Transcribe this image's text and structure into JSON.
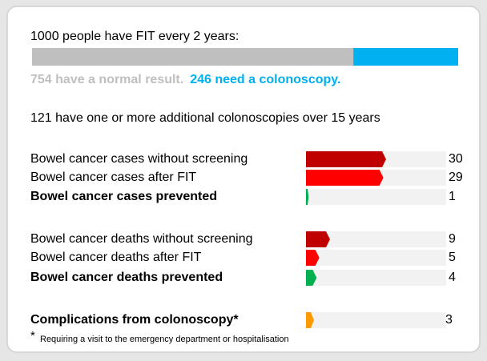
{
  "header": "1000 people have FIT every 2 years:",
  "fit_bar": {
    "total": 1000,
    "segments": [
      {
        "label": "754 have a normal result.",
        "value": 754,
        "color": "#bfbfbf"
      },
      {
        "label": "246 need a colonoscopy.",
        "value": 246,
        "color": "#00b0f0"
      }
    ]
  },
  "additional": "121 have one or more additional colonoscopies over 15 years",
  "rows": [
    {
      "label": "Bowel cancer cases without screening",
      "value": 30,
      "color": "#c00000",
      "text_color": "#000000",
      "bold": false
    },
    {
      "label": "Bowel cancer cases after FIT",
      "value": 29,
      "color": "#ff0000",
      "text_color": "#000000",
      "bold": false
    },
    {
      "label": "Bowel cancer cases prevented",
      "value": 1,
      "color": "#00b050",
      "text_color": "#00b050",
      "bold": true
    },
    {
      "label": "Bowel cancer deaths without screening",
      "value": 9,
      "color": "#c00000",
      "text_color": "#000000",
      "bold": false
    },
    {
      "label": "Bowel cancer deaths after FIT",
      "value": 5,
      "color": "#ff0000",
      "text_color": "#000000",
      "bold": false
    },
    {
      "label": "Bowel cancer deaths prevented",
      "value": 4,
      "color": "#00b050",
      "text_color": "#00b050",
      "bold": true
    },
    {
      "label": "Complications from colonoscopy*",
      "value": 3,
      "color": "#ff9900",
      "text_color": "#000000",
      "bold": true
    }
  ],
  "footnote": {
    "symbol": "*",
    "text": "Requiring a visit to the emergency department or hospitalisation"
  }
}
